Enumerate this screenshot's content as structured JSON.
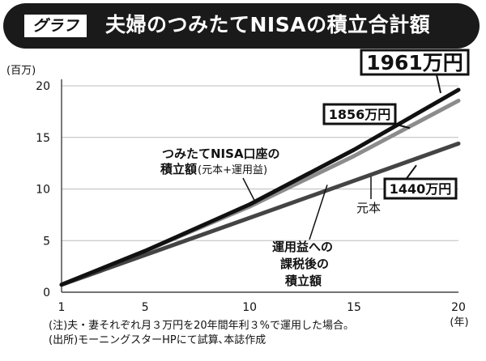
{
  "title": {
    "tag": "グラフ",
    "text": "夫婦のつみたてNISAの積立合計額"
  },
  "chart_data": {
    "type": "line",
    "y_unit_label": "(百万)",
    "x_unit_label": "(年)",
    "xlim": [
      1,
      20
    ],
    "ylim": [
      0,
      20
    ],
    "x_ticks": [
      1,
      5,
      10,
      15,
      20
    ],
    "y_ticks": [
      0,
      5,
      10,
      15,
      20
    ],
    "grid": "horizontal",
    "series": [
      {
        "name": "つみたてNISA口座の積立額(元本+運用益)",
        "color": "#111111",
        "x": [
          1,
          5,
          10,
          15,
          20
        ],
        "y": [
          0.73,
          4.0,
          8.5,
          13.8,
          19.61
        ]
      },
      {
        "name": "運用益への課税後の積立額",
        "color": "#8c8c8c",
        "x": [
          1,
          5,
          10,
          15,
          20
        ],
        "y": [
          0.73,
          4.0,
          8.3,
          13.2,
          18.56
        ]
      },
      {
        "name": "元本",
        "color": "#444444",
        "x": [
          1,
          20
        ],
        "y": [
          0.72,
          14.4
        ]
      }
    ],
    "callouts": [
      {
        "text": "1961万円",
        "series": 0
      },
      {
        "text": "1856万円",
        "series": 1
      },
      {
        "text": "1440万円",
        "series": 2
      }
    ],
    "annotations": {
      "nisa_line1": "つみたてNISA口座の",
      "nisa_line2a": "積立額",
      "nisa_line2b": "(元本+運用益)",
      "principal": "元本",
      "taxed_line1": "運用益への",
      "taxed_line2": "課税後の",
      "taxed_line3": "積立額"
    }
  },
  "notes": [
    "(注)夫・妻それぞれ月３万円を20年間年利３%で運用した場合。",
    "(出所)モーニングスターHPにて試算､本誌作成"
  ]
}
